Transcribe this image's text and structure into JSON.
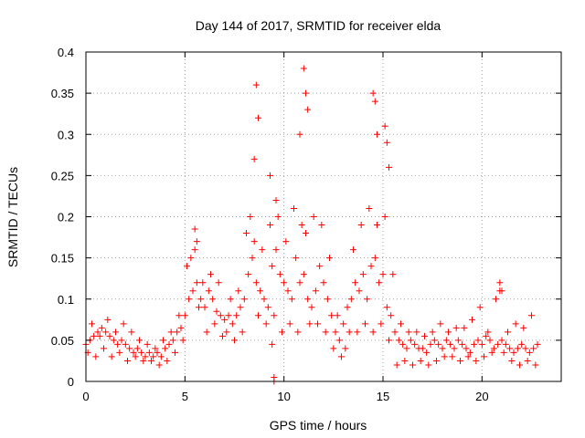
{
  "chart_data": {
    "type": "scatter",
    "title": "Day 144 of 2017, SRMTID for receiver elda",
    "xlabel": "GPS time / hours",
    "ylabel": "SRMTID / TECUs",
    "xlim": [
      0,
      24
    ],
    "ylim": [
      0,
      0.4
    ],
    "xticks": [
      0,
      5,
      10,
      15,
      20
    ],
    "xtick_labels": [
      "0",
      "5",
      "10",
      "15",
      "20"
    ],
    "yticks": [
      0,
      0.05,
      0.1,
      0.15,
      0.2,
      0.25,
      0.3,
      0.35,
      0.4
    ],
    "ytick_labels": [
      "0",
      "0.05",
      "0.1",
      "0.15",
      "0.2",
      "0.25",
      "0.3",
      "0.35",
      "0.4"
    ],
    "grid": true,
    "marker": "+",
    "color": "#ff0000",
    "series": [
      {
        "name": "SRMTID",
        "x": [
          0.0,
          0.2,
          0.4,
          0.6,
          0.8,
          1.0,
          1.2,
          1.4,
          1.6,
          1.8,
          2.0,
          2.2,
          2.4,
          2.6,
          2.8,
          3.0,
          3.2,
          3.4,
          3.6,
          3.8,
          4.0,
          4.2,
          4.4,
          4.6,
          4.8,
          5.0,
          5.2,
          5.4,
          5.6,
          5.8,
          6.0,
          6.2,
          6.4,
          6.6,
          6.8,
          7.0,
          7.2,
          7.4,
          7.6,
          7.8,
          8.0,
          8.2,
          8.4,
          8.6,
          8.8,
          9.0,
          9.2,
          9.4,
          9.6,
          9.8,
          10.0,
          10.2,
          10.4,
          10.6,
          10.8,
          11.0,
          11.2,
          11.4,
          11.6,
          11.8,
          12.0,
          12.2,
          12.4,
          12.6,
          12.8,
          13.0,
          13.2,
          13.4,
          13.6,
          13.8,
          14.0,
          14.2,
          14.4,
          14.6,
          14.8,
          15.0,
          15.2,
          15.4,
          15.6,
          15.8,
          16.0,
          16.2,
          16.4,
          16.6,
          16.8,
          17.0,
          17.2,
          17.4,
          17.6,
          17.8,
          18.0,
          18.2,
          18.4,
          18.6,
          18.8,
          19.0,
          19.2,
          19.4,
          19.6,
          19.8,
          20.0,
          20.2,
          20.4,
          20.6,
          20.8,
          21.0,
          21.2,
          21.4,
          21.6,
          21.8,
          22.0,
          22.2,
          22.4,
          22.6,
          22.8,
          0.1,
          0.3,
          0.5,
          0.7,
          0.9,
          1.1,
          1.3,
          1.5,
          1.7,
          1.9,
          2.1,
          2.3,
          2.5,
          2.7,
          2.9,
          3.1,
          3.3,
          3.5,
          3.7,
          3.9,
          4.1,
          4.3,
          4.5,
          4.7,
          4.9,
          5.1,
          5.3,
          5.5,
          5.7,
          5.9,
          6.1,
          6.3,
          6.5,
          6.7,
          6.9,
          7.1,
          7.3,
          7.5,
          7.7,
          7.9,
          8.1,
          8.3,
          8.5,
          8.7,
          8.9,
          9.1,
          9.3,
          9.5,
          9.7,
          9.9,
          10.1,
          10.3,
          10.5,
          10.7,
          10.9,
          11.1,
          11.3,
          11.5,
          11.7,
          11.9,
          12.1,
          12.3,
          12.5,
          12.7,
          12.9,
          13.1,
          13.3,
          13.5,
          13.7,
          13.9,
          14.1,
          14.3,
          14.5,
          14.7,
          14.9,
          15.1,
          15.3,
          15.5,
          15.7,
          15.9,
          16.1,
          16.3,
          16.5,
          16.7,
          16.9,
          17.1,
          17.3,
          17.5,
          17.7,
          17.9,
          18.1,
          18.3,
          18.5,
          18.7,
          18.9,
          19.1,
          19.3,
          19.5,
          19.7,
          19.9,
          20.1,
          20.3,
          20.5,
          20.7,
          20.9,
          21.1,
          21.3,
          21.5,
          21.7,
          21.9,
          22.1,
          22.3,
          22.5,
          22.7,
          8.5,
          8.6,
          8.7,
          9.3,
          9.6,
          10.8,
          11.0,
          11.1,
          11.2,
          14.5,
          14.6,
          14.7,
          15.1,
          15.2,
          15.3,
          5.5,
          5.6,
          20.9,
          21.0,
          9.4,
          9.5,
          9.5
        ],
        "y": [
          0.045,
          0.05,
          0.055,
          0.06,
          0.065,
          0.06,
          0.055,
          0.05,
          0.045,
          0.05,
          0.045,
          0.04,
          0.035,
          0.04,
          0.035,
          0.03,
          0.035,
          0.03,
          0.035,
          0.03,
          0.04,
          0.045,
          0.05,
          0.06,
          0.065,
          0.08,
          0.1,
          0.11,
          0.12,
          0.1,
          0.09,
          0.11,
          0.1,
          0.085,
          0.08,
          0.075,
          0.08,
          0.07,
          0.08,
          0.09,
          0.1,
          0.13,
          0.15,
          0.12,
          0.11,
          0.1,
          0.09,
          0.14,
          0.16,
          0.13,
          0.12,
          0.11,
          0.1,
          0.15,
          0.12,
          0.13,
          0.1,
          0.09,
          0.11,
          0.14,
          0.12,
          0.1,
          0.08,
          0.06,
          0.05,
          0.07,
          0.09,
          0.1,
          0.12,
          0.11,
          0.13,
          0.1,
          0.14,
          0.15,
          0.12,
          0.13,
          0.09,
          0.08,
          0.06,
          0.05,
          0.045,
          0.04,
          0.05,
          0.045,
          0.04,
          0.04,
          0.035,
          0.045,
          0.05,
          0.045,
          0.04,
          0.05,
          0.045,
          0.04,
          0.05,
          0.045,
          0.04,
          0.035,
          0.045,
          0.05,
          0.045,
          0.055,
          0.05,
          0.04,
          0.045,
          0.05,
          0.045,
          0.04,
          0.035,
          0.04,
          0.045,
          0.04,
          0.035,
          0.04,
          0.045,
          0.035,
          0.07,
          0.03,
          0.055,
          0.04,
          0.075,
          0.03,
          0.06,
          0.035,
          0.07,
          0.025,
          0.06,
          0.03,
          0.05,
          0.025,
          0.045,
          0.025,
          0.04,
          0.02,
          0.05,
          0.025,
          0.06,
          0.035,
          0.08,
          0.05,
          0.14,
          0.15,
          0.16,
          0.09,
          0.12,
          0.06,
          0.13,
          0.07,
          0.12,
          0.055,
          0.06,
          0.1,
          0.05,
          0.11,
          0.06,
          0.18,
          0.2,
          0.17,
          0.08,
          0.16,
          0.07,
          0.19,
          0.08,
          0.2,
          0.06,
          0.17,
          0.07,
          0.21,
          0.06,
          0.19,
          0.18,
          0.07,
          0.2,
          0.07,
          0.19,
          0.06,
          0.15,
          0.04,
          0.08,
          0.03,
          0.04,
          0.06,
          0.16,
          0.06,
          0.19,
          0.07,
          0.21,
          0.06,
          0.19,
          0.07,
          0.2,
          0.05,
          0.13,
          0.02,
          0.07,
          0.025,
          0.06,
          0.02,
          0.06,
          0.025,
          0.055,
          0.02,
          0.06,
          0.025,
          0.07,
          0.03,
          0.06,
          0.03,
          0.065,
          0.025,
          0.065,
          0.03,
          0.075,
          0.025,
          0.09,
          0.03,
          0.06,
          0.035,
          0.1,
          0.11,
          0.035,
          0.06,
          0.025,
          0.07,
          0.02,
          0.065,
          0.025,
          0.08,
          0.02,
          0.27,
          0.36,
          0.32,
          0.25,
          0.22,
          0.3,
          0.38,
          0.35,
          0.33,
          0.35,
          0.34,
          0.3,
          0.31,
          0.29,
          0.26,
          0.185,
          0.17,
          0.12,
          0.11,
          0.045,
          0.0,
          0.005
        ]
      }
    ]
  }
}
